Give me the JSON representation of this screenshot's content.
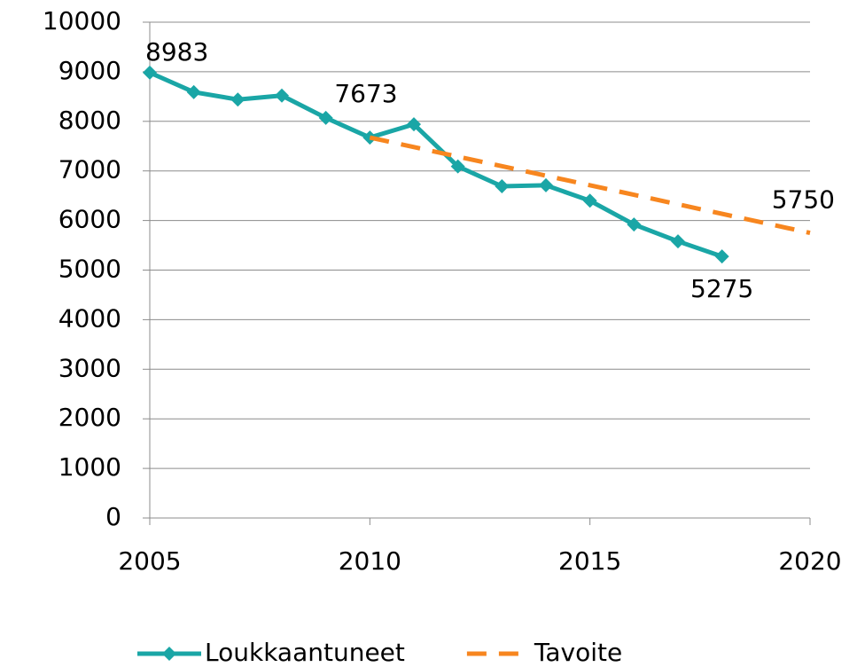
{
  "chart_data": {
    "type": "line",
    "series": [
      {
        "name": "Loukkaantuneet",
        "color": "#1aa6a6",
        "dash": false,
        "marker": "diamond",
        "x": [
          2005,
          2006,
          2007,
          2008,
          2009,
          2010,
          2011,
          2012,
          2013,
          2014,
          2015,
          2016,
          2017,
          2018
        ],
        "values": [
          8983,
          8590,
          8440,
          8520,
          8070,
          7673,
          7940,
          7090,
          6690,
          6710,
          6400,
          5920,
          5580,
          5275
        ],
        "labeled": [
          0,
          5,
          13
        ]
      },
      {
        "name": "Tavoite",
        "color": "#f7861f",
        "dash": true,
        "marker": "none",
        "x": [
          2010,
          2020
        ],
        "values": [
          7673,
          5750
        ],
        "labeled": [
          1
        ]
      }
    ],
    "xlim": [
      2005,
      2020
    ],
    "xticks": [
      2005,
      2010,
      2015,
      2020
    ],
    "ylim": [
      0,
      10000
    ],
    "yticks": [
      0,
      1000,
      2000,
      3000,
      4000,
      5000,
      6000,
      7000,
      8000,
      9000,
      10000
    ],
    "grid": true,
    "legend": "bottom"
  }
}
